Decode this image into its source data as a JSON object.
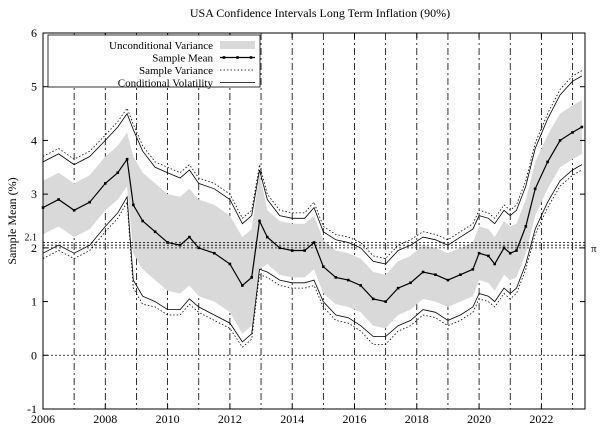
{
  "chart_data": {
    "type": "line",
    "title": "USA Confidence Intervals Long Term Inflation (90%)",
    "xlabel": "",
    "ylabel": "Sample Mean (%)",
    "xlim": [
      2006,
      2023.4
    ],
    "ylim": [
      -1,
      6
    ],
    "x_ticks": [
      2006,
      2008,
      2010,
      2012,
      2014,
      2016,
      2018,
      2020,
      2022
    ],
    "y_ticks": [
      -1,
      0,
      1,
      2,
      3,
      4,
      5,
      6
    ],
    "extra_ytick": {
      "value": 2.1,
      "label": "2.1"
    },
    "reference_lines": [
      {
        "value": 0,
        "label": ""
      },
      {
        "value": 2.0,
        "label": "π"
      },
      {
        "value": 2.05,
        "label": ""
      },
      {
        "value": 2.1,
        "label": ""
      }
    ],
    "vertical_lines": [
      2007,
      2008,
      2009,
      2010,
      2011,
      2012,
      2013,
      2014,
      2015,
      2016,
      2017,
      2018,
      2019,
      2020,
      2021,
      2022,
      2023
    ],
    "legend_position": "top-left",
    "legend": [
      "Unconditional Variance",
      "Sample Mean",
      "Sample Variance",
      "Conditional Volatility"
    ],
    "series": [
      {
        "name": "Sample Mean",
        "x": [
          2006.0,
          2006.5,
          2007.0,
          2007.5,
          2008.0,
          2008.4,
          2008.7,
          2008.9,
          2009.2,
          2009.6,
          2010.0,
          2010.4,
          2010.7,
          2011.0,
          2011.5,
          2012.0,
          2012.4,
          2012.7,
          2012.95,
          2013.2,
          2013.6,
          2014.0,
          2014.4,
          2014.7,
          2015.0,
          2015.4,
          2015.8,
          2016.2,
          2016.6,
          2017.0,
          2017.4,
          2017.8,
          2018.2,
          2018.6,
          2019.0,
          2019.4,
          2019.8,
          2020.0,
          2020.3,
          2020.5,
          2020.8,
          2021.0,
          2021.2,
          2021.5,
          2021.8,
          2022.2,
          2022.6,
          2023.0,
          2023.3
        ],
        "y": [
          2.75,
          2.9,
          2.7,
          2.85,
          3.2,
          3.4,
          3.65,
          2.8,
          2.5,
          2.3,
          2.1,
          2.05,
          2.2,
          2.0,
          1.9,
          1.7,
          1.3,
          1.45,
          2.5,
          2.2,
          2.0,
          1.95,
          1.95,
          2.1,
          1.65,
          1.45,
          1.4,
          1.3,
          1.05,
          1.0,
          1.25,
          1.35,
          1.55,
          1.5,
          1.4,
          1.5,
          1.6,
          1.9,
          1.85,
          1.7,
          2.0,
          1.9,
          1.95,
          2.4,
          3.1,
          3.6,
          4.0,
          4.15,
          4.25
        ]
      },
      {
        "name": "Unconditional Variance",
        "x": [
          2006.0,
          2006.5,
          2007.0,
          2007.5,
          2008.0,
          2008.4,
          2008.7,
          2008.9,
          2009.2,
          2009.6,
          2010.0,
          2010.4,
          2010.7,
          2011.0,
          2011.5,
          2012.0,
          2012.4,
          2012.7,
          2012.95,
          2013.2,
          2013.6,
          2014.0,
          2014.4,
          2014.7,
          2015.0,
          2015.4,
          2015.8,
          2016.2,
          2016.6,
          2017.0,
          2017.4,
          2017.8,
          2018.2,
          2018.6,
          2019.0,
          2019.4,
          2019.8,
          2020.0,
          2020.3,
          2020.5,
          2020.8,
          2021.0,
          2021.2,
          2021.5,
          2021.8,
          2022.2,
          2022.6,
          2023.0,
          2023.3
        ],
        "lower": [
          2.25,
          2.4,
          2.2,
          2.35,
          2.7,
          2.9,
          3.15,
          1.9,
          1.6,
          1.4,
          1.2,
          1.15,
          1.3,
          1.1,
          1.0,
          0.8,
          0.4,
          0.55,
          1.6,
          1.7,
          1.5,
          1.45,
          1.45,
          1.6,
          1.15,
          0.95,
          0.9,
          0.8,
          0.55,
          0.5,
          0.75,
          0.85,
          1.05,
          1.0,
          0.9,
          1.0,
          1.1,
          1.4,
          1.35,
          1.2,
          1.5,
          1.4,
          1.45,
          1.9,
          2.6,
          3.1,
          3.5,
          3.65,
          3.75
        ],
        "upper": [
          3.25,
          3.4,
          3.2,
          3.35,
          3.7,
          3.9,
          4.15,
          3.7,
          3.4,
          3.2,
          3.0,
          2.95,
          3.1,
          2.9,
          2.8,
          2.6,
          2.2,
          2.35,
          3.4,
          2.7,
          2.5,
          2.45,
          2.45,
          2.6,
          2.15,
          1.95,
          1.9,
          1.8,
          1.55,
          1.5,
          1.75,
          1.85,
          2.05,
          2.0,
          1.9,
          2.0,
          2.1,
          2.4,
          2.35,
          2.2,
          2.5,
          2.4,
          2.45,
          2.9,
          3.6,
          4.1,
          4.5,
          4.65,
          4.75
        ]
      },
      {
        "name": "Sample Variance",
        "x": [
          2006.0,
          2006.5,
          2007.0,
          2007.5,
          2008.0,
          2008.4,
          2008.7,
          2008.9,
          2009.2,
          2009.6,
          2010.0,
          2010.4,
          2010.7,
          2011.0,
          2011.5,
          2012.0,
          2012.4,
          2012.7,
          2012.95,
          2013.2,
          2013.6,
          2014.0,
          2014.4,
          2014.7,
          2015.0,
          2015.4,
          2015.8,
          2016.2,
          2016.6,
          2017.0,
          2017.4,
          2017.8,
          2018.2,
          2018.6,
          2019.0,
          2019.4,
          2019.8,
          2020.0,
          2020.3,
          2020.5,
          2020.8,
          2021.0,
          2021.2,
          2021.5,
          2021.8,
          2022.2,
          2022.6,
          2023.0,
          2023.3
        ],
        "lower": [
          1.8,
          1.95,
          1.8,
          1.95,
          2.3,
          2.55,
          2.85,
          1.25,
          0.95,
          0.9,
          0.75,
          0.75,
          0.95,
          0.8,
          0.65,
          0.5,
          0.15,
          0.3,
          1.5,
          1.45,
          1.3,
          1.25,
          1.25,
          1.3,
          0.9,
          0.65,
          0.6,
          0.45,
          0.2,
          0.2,
          0.45,
          0.55,
          0.75,
          0.7,
          0.55,
          0.65,
          0.8,
          1.05,
          1.0,
          0.9,
          1.15,
          1.05,
          1.15,
          1.6,
          2.25,
          2.75,
          3.15,
          3.35,
          3.45
        ],
        "upper": [
          3.7,
          3.85,
          3.65,
          3.8,
          4.1,
          4.35,
          4.6,
          4.3,
          3.9,
          3.6,
          3.5,
          3.4,
          3.55,
          3.3,
          3.2,
          3.0,
          2.55,
          2.7,
          3.55,
          3.0,
          2.7,
          2.65,
          2.65,
          2.85,
          2.4,
          2.25,
          2.2,
          2.1,
          1.85,
          1.8,
          2.05,
          2.15,
          2.3,
          2.25,
          2.15,
          2.3,
          2.45,
          2.7,
          2.65,
          2.55,
          2.8,
          2.7,
          2.8,
          3.25,
          3.95,
          4.5,
          4.95,
          5.2,
          5.3
        ]
      },
      {
        "name": "Conditional Volatility",
        "x": [
          2006.0,
          2006.5,
          2007.0,
          2007.5,
          2008.0,
          2008.4,
          2008.7,
          2008.9,
          2009.2,
          2009.6,
          2010.0,
          2010.4,
          2010.7,
          2011.0,
          2011.5,
          2012.0,
          2012.4,
          2012.7,
          2012.95,
          2013.2,
          2013.6,
          2014.0,
          2014.4,
          2014.7,
          2015.0,
          2015.4,
          2015.8,
          2016.2,
          2016.6,
          2017.0,
          2017.4,
          2017.8,
          2018.2,
          2018.6,
          2019.0,
          2019.4,
          2019.8,
          2020.0,
          2020.3,
          2020.5,
          2020.8,
          2021.0,
          2021.2,
          2021.5,
          2021.8,
          2022.2,
          2022.6,
          2023.0,
          2023.3
        ],
        "lower": [
          1.9,
          2.05,
          1.9,
          2.05,
          2.4,
          2.65,
          2.95,
          1.4,
          1.1,
          1.0,
          0.85,
          0.85,
          1.05,
          0.9,
          0.75,
          0.6,
          0.25,
          0.4,
          1.6,
          1.55,
          1.4,
          1.35,
          1.35,
          1.4,
          1.0,
          0.75,
          0.7,
          0.55,
          0.35,
          0.35,
          0.55,
          0.65,
          0.85,
          0.8,
          0.65,
          0.75,
          0.9,
          1.15,
          1.1,
          1.0,
          1.25,
          1.15,
          1.25,
          1.7,
          2.35,
          2.85,
          3.25,
          3.45,
          3.55
        ],
        "upper": [
          3.6,
          3.75,
          3.55,
          3.7,
          4.0,
          4.25,
          4.5,
          4.2,
          3.8,
          3.5,
          3.4,
          3.3,
          3.45,
          3.2,
          3.1,
          2.9,
          2.45,
          2.6,
          3.45,
          2.9,
          2.6,
          2.55,
          2.55,
          2.75,
          2.3,
          2.15,
          2.1,
          2.0,
          1.75,
          1.7,
          1.95,
          2.05,
          2.2,
          2.15,
          2.05,
          2.2,
          2.35,
          2.6,
          2.55,
          2.45,
          2.7,
          2.6,
          2.7,
          3.15,
          3.85,
          4.4,
          4.85,
          5.1,
          5.2
        ]
      }
    ],
    "colors": {
      "band": "#d9d9d9",
      "line": "#000000",
      "axis": "#000000"
    }
  }
}
